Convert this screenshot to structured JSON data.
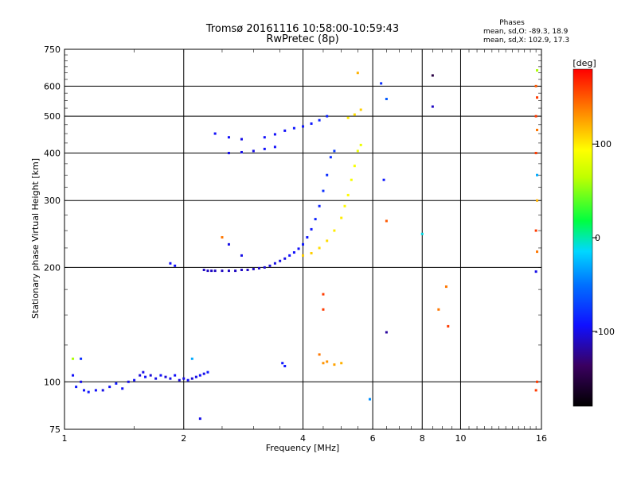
{
  "chart_data": {
    "type": "scatter",
    "title": "Tromsø 20161116 10:58:00-10:59:43",
    "subtitle": "RwPretec (8p)",
    "xlabel": "Frequency [MHz]",
    "ylabel": "Stationary phase Virtual Height [km]",
    "x_scale": "log",
    "y_scale": "log",
    "xlim": [
      1,
      16
    ],
    "ylim": [
      75,
      750
    ],
    "x_ticks": [
      1,
      2,
      4,
      6,
      8,
      10,
      16
    ],
    "y_ticks": [
      75,
      100,
      200,
      300,
      400,
      500,
      600,
      750
    ],
    "grid": true,
    "phases_box": {
      "title": "Phases",
      "line_o": "mean, sd,O: -89.3, 18.9",
      "line_x": "mean, sd,X: 102.9, 17.3"
    },
    "colorbar": {
      "label": "[deg]",
      "range": [
        -180,
        180
      ],
      "ticks": [
        100,
        0,
        -100
      ]
    },
    "series": [
      {
        "mode": "O",
        "points": [
          [
            1.05,
            104,
            -95
          ],
          [
            1.07,
            97,
            -90
          ],
          [
            1.1,
            100,
            -100
          ],
          [
            1.12,
            95,
            -95
          ],
          [
            1.15,
            94,
            -90
          ],
          [
            1.2,
            95,
            -95
          ],
          [
            1.25,
            95,
            -100
          ],
          [
            1.3,
            97,
            -95
          ],
          [
            1.35,
            99,
            -90
          ],
          [
            1.4,
            96,
            -95
          ],
          [
            1.45,
            100,
            -100
          ],
          [
            1.5,
            101,
            -95
          ],
          [
            1.55,
            104,
            -105
          ],
          [
            1.58,
            106,
            -100
          ],
          [
            1.6,
            103,
            -95
          ],
          [
            1.65,
            104,
            -105
          ],
          [
            1.7,
            102,
            -100
          ],
          [
            1.75,
            104,
            -95
          ],
          [
            1.8,
            103,
            -105
          ],
          [
            1.85,
            102,
            -100
          ],
          [
            1.9,
            104,
            -95
          ],
          [
            1.95,
            101,
            -105
          ],
          [
            2.0,
            102,
            -100
          ],
          [
            2.05,
            101,
            -95
          ],
          [
            2.1,
            102,
            -105
          ],
          [
            2.15,
            103,
            -100
          ],
          [
            2.2,
            104,
            -95
          ],
          [
            2.25,
            105,
            -100
          ],
          [
            2.3,
            106,
            -90
          ],
          [
            2.25,
            197,
            -110
          ],
          [
            2.3,
            196,
            -110
          ],
          [
            2.35,
            196,
            -110
          ],
          [
            2.4,
            196,
            -110
          ],
          [
            2.5,
            196,
            -110
          ],
          [
            2.6,
            196,
            -110
          ],
          [
            2.7,
            196,
            -110
          ],
          [
            2.8,
            197,
            -110
          ],
          [
            2.9,
            197,
            -110
          ],
          [
            3.0,
            198,
            -110
          ],
          [
            3.1,
            199,
            -110
          ],
          [
            3.2,
            200,
            -105
          ],
          [
            3.3,
            202,
            -105
          ],
          [
            3.4,
            205,
            -100
          ],
          [
            3.5,
            208,
            -100
          ],
          [
            3.6,
            211,
            -100
          ],
          [
            3.7,
            215,
            -95
          ],
          [
            3.8,
            219,
            -95
          ],
          [
            3.9,
            224,
            -95
          ],
          [
            4.0,
            230,
            -90
          ],
          [
            4.1,
            240,
            -90
          ],
          [
            4.2,
            252,
            -90
          ],
          [
            4.3,
            268,
            -85
          ],
          [
            4.4,
            290,
            -85
          ],
          [
            4.5,
            318,
            -80
          ],
          [
            4.6,
            350,
            -80
          ],
          [
            4.7,
            390,
            -80
          ],
          [
            4.8,
            405,
            -75
          ],
          [
            2.6,
            400,
            -100
          ],
          [
            2.8,
            402,
            -100
          ],
          [
            3.0,
            405,
            -100
          ],
          [
            3.2,
            410,
            -95
          ],
          [
            3.4,
            415,
            -95
          ],
          [
            3.2,
            440,
            -95
          ],
          [
            3.4,
            448,
            -95
          ],
          [
            3.6,
            458,
            -95
          ],
          [
            3.8,
            465,
            -90
          ],
          [
            4.0,
            470,
            -90
          ],
          [
            4.2,
            478,
            -90
          ],
          [
            4.4,
            488,
            -85
          ],
          [
            4.6,
            500,
            -85
          ],
          [
            2.4,
            450,
            -95
          ],
          [
            2.6,
            440,
            -95
          ],
          [
            2.8,
            435,
            -100
          ],
          [
            1.85,
            205,
            -95
          ],
          [
            1.9,
            202,
            -95
          ],
          [
            2.6,
            230,
            -100
          ],
          [
            2.8,
            215,
            -100
          ],
          [
            3.55,
            112,
            -90
          ],
          [
            3.6,
            110,
            -90
          ],
          [
            1.05,
            115,
            60
          ],
          [
            1.1,
            115,
            -80
          ]
        ]
      },
      {
        "mode": "X",
        "points": [
          [
            4.0,
            215,
            110
          ],
          [
            4.2,
            218,
            110
          ],
          [
            4.4,
            225,
            105
          ],
          [
            4.6,
            235,
            105
          ],
          [
            4.8,
            250,
            100
          ],
          [
            5.0,
            270,
            100
          ],
          [
            5.1,
            290,
            95
          ],
          [
            5.2,
            310,
            95
          ],
          [
            5.3,
            340,
            90
          ],
          [
            5.4,
            370,
            90
          ],
          [
            5.5,
            405,
            85
          ],
          [
            5.6,
            420,
            85
          ],
          [
            5.2,
            495,
            100
          ],
          [
            5.4,
            505,
            105
          ],
          [
            5.6,
            520,
            110
          ],
          [
            4.5,
            112,
            130
          ],
          [
            4.6,
            113,
            130
          ],
          [
            4.8,
            111,
            125
          ],
          [
            5.0,
            112,
            120
          ],
          [
            4.4,
            118,
            140
          ],
          [
            5.5,
            650,
            120
          ],
          [
            6.3,
            610,
            -80
          ],
          [
            6.5,
            555,
            -60
          ],
          [
            6.4,
            340,
            -90
          ],
          [
            6.5,
            265,
            150
          ],
          [
            8.0,
            245,
            -10
          ],
          [
            8.5,
            640,
            -150
          ],
          [
            8.5,
            530,
            -110
          ],
          [
            8.8,
            155,
            140
          ],
          [
            9.2,
            178,
            140
          ],
          [
            9.3,
            140,
            160
          ],
          [
            6.5,
            135,
            -120
          ],
          [
            5.9,
            90,
            -40
          ],
          [
            4.5,
            170,
            160
          ],
          [
            4.5,
            155,
            160
          ],
          [
            15.6,
            660,
            60
          ],
          [
            15.5,
            600,
            150
          ],
          [
            15.6,
            560,
            160
          ],
          [
            15.5,
            500,
            160
          ],
          [
            15.6,
            460,
            140
          ],
          [
            15.5,
            400,
            160
          ],
          [
            15.6,
            350,
            -30
          ],
          [
            15.6,
            300,
            120
          ],
          [
            15.5,
            250,
            160
          ],
          [
            15.6,
            220,
            140
          ],
          [
            15.5,
            195,
            -100
          ],
          [
            15.6,
            100,
            160
          ],
          [
            15.5,
            95,
            160
          ],
          [
            2.1,
            115,
            -30
          ],
          [
            2.5,
            240,
            140
          ],
          [
            2.2,
            80,
            -100
          ]
        ]
      }
    ]
  }
}
